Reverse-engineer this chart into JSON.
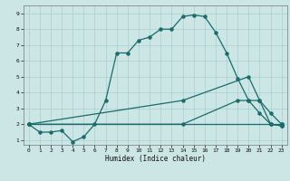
{
  "xlabel": "Humidex (Indice chaleur)",
  "bg_color": "#cce5e5",
  "grid_color": "#aacfcf",
  "line_color": "#1a6b6b",
  "xlim": [
    -0.5,
    23.5
  ],
  "ylim": [
    0.7,
    9.5
  ],
  "xticks": [
    0,
    1,
    2,
    3,
    4,
    5,
    6,
    7,
    8,
    9,
    10,
    11,
    12,
    13,
    14,
    15,
    16,
    17,
    18,
    19,
    20,
    21,
    22,
    23
  ],
  "yticks": [
    1,
    2,
    3,
    4,
    5,
    6,
    7,
    8,
    9
  ],
  "line1_x": [
    0,
    1,
    2,
    3,
    4,
    5,
    6,
    7,
    8,
    9,
    10,
    11,
    12,
    13,
    14,
    15,
    16,
    17,
    18,
    19,
    20,
    21,
    22,
    23
  ],
  "line1_y": [
    2.0,
    1.5,
    1.5,
    1.6,
    0.9,
    1.2,
    2.0,
    3.5,
    6.5,
    6.5,
    7.3,
    7.5,
    8.0,
    8.0,
    8.8,
    8.9,
    8.8,
    7.8,
    6.5,
    4.9,
    3.5,
    2.7,
    2.0,
    1.9
  ],
  "line2_x": [
    0,
    23
  ],
  "line2_y": [
    2.0,
    2.0
  ],
  "line3_x": [
    0,
    14,
    20,
    21,
    22,
    23
  ],
  "line3_y": [
    2.0,
    3.5,
    5.0,
    3.5,
    2.7,
    2.0
  ],
  "line4_x": [
    0,
    14,
    19,
    20,
    21,
    22,
    23
  ],
  "line4_y": [
    2.0,
    2.0,
    3.5,
    3.5,
    3.5,
    2.0,
    1.9
  ]
}
